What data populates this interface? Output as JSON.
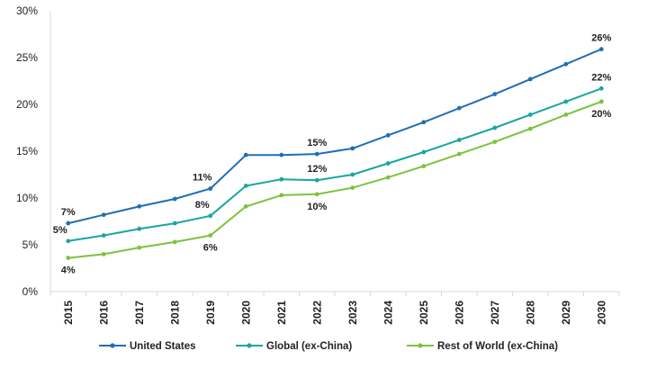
{
  "chart_data": {
    "type": "line",
    "categories": [
      "2015",
      "2016",
      "2017",
      "2018",
      "2019",
      "2020",
      "2021",
      "2022",
      "2023",
      "2024",
      "2025",
      "2026",
      "2027",
      "2028",
      "2029",
      "2030"
    ],
    "ylim": [
      0,
      30
    ],
    "yticks": [
      0,
      5,
      10,
      15,
      20,
      25,
      30
    ],
    "ytick_labels": [
      "0%",
      "5%",
      "10%",
      "15%",
      "20%",
      "25%",
      "30%"
    ],
    "grid": false,
    "legend_position": "bottom",
    "series": [
      {
        "name": "United States",
        "color": "#1f6fb5",
        "values": [
          7.3,
          8.2,
          9.1,
          9.9,
          11.0,
          14.6,
          14.6,
          14.7,
          15.3,
          16.7,
          18.1,
          19.6,
          21.1,
          22.7,
          24.3,
          25.9
        ]
      },
      {
        "name": "Global (ex-China)",
        "color": "#1aa6a0",
        "values": [
          5.4,
          6.0,
          6.7,
          7.3,
          8.1,
          11.3,
          12.0,
          11.9,
          12.5,
          13.7,
          14.9,
          16.2,
          17.5,
          18.9,
          20.3,
          21.7
        ]
      },
      {
        "name": "Rest of World (ex-China)",
        "color": "#7dc242",
        "values": [
          3.6,
          4.0,
          4.7,
          5.3,
          6.0,
          9.1,
          10.3,
          10.4,
          11.1,
          12.2,
          13.4,
          14.7,
          16.0,
          17.4,
          18.9,
          20.3
        ]
      }
    ],
    "data_labels": [
      {
        "series": 0,
        "index": 0,
        "text": "7%",
        "pos": "above"
      },
      {
        "series": 0,
        "index": 4,
        "text": "11%",
        "pos": "above-left"
      },
      {
        "series": 0,
        "index": 7,
        "text": "15%",
        "pos": "above"
      },
      {
        "series": 0,
        "index": 15,
        "text": "26%",
        "pos": "above"
      },
      {
        "series": 1,
        "index": 0,
        "text": "5%",
        "pos": "above-left"
      },
      {
        "series": 1,
        "index": 4,
        "text": "8%",
        "pos": "above-left"
      },
      {
        "series": 1,
        "index": 7,
        "text": "12%",
        "pos": "above"
      },
      {
        "series": 1,
        "index": 15,
        "text": "22%",
        "pos": "above"
      },
      {
        "series": 2,
        "index": 0,
        "text": "4%",
        "pos": "below"
      },
      {
        "series": 2,
        "index": 4,
        "text": "6%",
        "pos": "below"
      },
      {
        "series": 2,
        "index": 7,
        "text": "10%",
        "pos": "below"
      },
      {
        "series": 2,
        "index": 15,
        "text": "20%",
        "pos": "below"
      }
    ]
  }
}
